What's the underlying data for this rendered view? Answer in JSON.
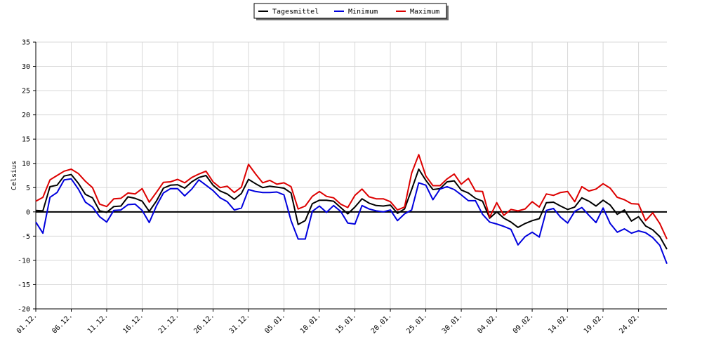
{
  "chart_data": {
    "type": "line",
    "ylabel": "Celsius",
    "ylim": [
      -20,
      35
    ],
    "yticks": [
      35,
      30,
      25,
      20,
      15,
      10,
      5,
      0,
      -5,
      -10,
      -15,
      -20
    ],
    "xticks": [
      "01.12.",
      "06.12.",
      "11.12.",
      "16.12.",
      "21.12.",
      "26.12.",
      "31.12.",
      "05.01.",
      "10.01.",
      "15.01.",
      "20.01.",
      "25.01.",
      "30.01.",
      "04.02.",
      "09.02.",
      "14.02.",
      "19.02.",
      "24.02."
    ],
    "grid": true,
    "legend_position": "top-center",
    "series": [
      {
        "name": "Tagesmittel",
        "color": "#000000",
        "values": [
          0.3,
          0.2,
          5.2,
          5.5,
          7.4,
          7.7,
          5.9,
          3.6,
          2.9,
          0.2,
          -0.1,
          1.1,
          1.2,
          3.1,
          2.8,
          2.2,
          0.1,
          2.2,
          4.9,
          5.5,
          5.6,
          4.9,
          6.2,
          7.1,
          7.5,
          5.5,
          4.3,
          3.7,
          2.6,
          3.8,
          6.7,
          5.8,
          5.0,
          5.3,
          5.1,
          4.9,
          3.9,
          -2.6,
          -1.8,
          1.7,
          2.4,
          2.4,
          2.2,
          0.9,
          -0.4,
          1.0,
          2.7,
          1.8,
          1.3,
          1.2,
          1.4,
          -0.3,
          0.6,
          4.6,
          8.8,
          6.5,
          4.6,
          4.8,
          6.2,
          6.4,
          4.5,
          3.9,
          2.8,
          2.2,
          -1.3,
          0.0,
          -1.3,
          -2.1,
          -3.2,
          -2.4,
          -1.8,
          -1.4,
          1.9,
          2.0,
          1.2,
          0.5,
          1.0,
          2.9,
          2.2,
          1.2,
          2.4,
          1.4,
          -0.5,
          0.4,
          -1.9,
          -1.0,
          -2.9,
          -3.7,
          -5.1,
          -7.7
        ]
      },
      {
        "name": "Minimum",
        "color": "#0000dd",
        "values": [
          -2.1,
          -4.4,
          3.0,
          4.0,
          6.6,
          6.8,
          4.7,
          2.0,
          1.0,
          -1.0,
          -2.1,
          0.3,
          0.4,
          1.5,
          1.6,
          0.3,
          -2.2,
          1.2,
          3.9,
          4.8,
          4.8,
          3.3,
          4.7,
          6.6,
          5.5,
          4.4,
          2.9,
          2.1,
          0.4,
          0.8,
          4.6,
          4.2,
          4.0,
          4.0,
          4.1,
          3.5,
          -1.8,
          -5.6,
          -5.6,
          0.1,
          1.2,
          -0.1,
          1.3,
          0.1,
          -2.3,
          -2.5,
          1.3,
          0.6,
          0.2,
          0.0,
          0.4,
          -1.8,
          -0.4,
          0.4,
          6.0,
          5.5,
          2.5,
          4.7,
          5.2,
          4.6,
          3.5,
          2.3,
          2.3,
          -0.5,
          -2.1,
          -2.5,
          -3.0,
          -3.6,
          -6.8,
          -5.1,
          -4.2,
          -5.2,
          0.3,
          0.7,
          -1.1,
          -2.3,
          0.1,
          0.9,
          -0.7,
          -2.2,
          0.8,
          -2.4,
          -4.2,
          -3.5,
          -4.4,
          -3.9,
          -4.3,
          -5.3,
          -6.9,
          -10.7
        ]
      },
      {
        "name": "Maximum",
        "color": "#dd0000",
        "values": [
          2.2,
          3.0,
          6.6,
          7.5,
          8.4,
          8.8,
          7.9,
          6.3,
          5.0,
          1.6,
          1.1,
          2.7,
          2.8,
          3.9,
          3.7,
          4.8,
          2.0,
          4.0,
          6.1,
          6.2,
          6.7,
          6.0,
          7.1,
          7.8,
          8.4,
          6.2,
          5.0,
          5.3,
          4.0,
          5.1,
          9.8,
          7.8,
          6.0,
          6.5,
          5.7,
          6.0,
          5.2,
          0.6,
          1.2,
          3.2,
          4.2,
          3.2,
          2.9,
          1.6,
          0.9,
          3.4,
          4.7,
          3.1,
          2.7,
          2.7,
          2.1,
          0.4,
          1.0,
          8.0,
          11.8,
          7.4,
          5.4,
          5.4,
          6.8,
          7.8,
          5.7,
          6.9,
          4.3,
          4.2,
          -1.1,
          1.9,
          -0.7,
          0.5,
          0.2,
          0.6,
          2.1,
          1.0,
          3.7,
          3.4,
          4.0,
          4.2,
          2.1,
          5.2,
          4.3,
          4.7,
          5.8,
          4.9,
          3.0,
          2.5,
          1.7,
          1.6,
          -1.8,
          -0.2,
          -2.4,
          -5.6
        ]
      }
    ]
  }
}
